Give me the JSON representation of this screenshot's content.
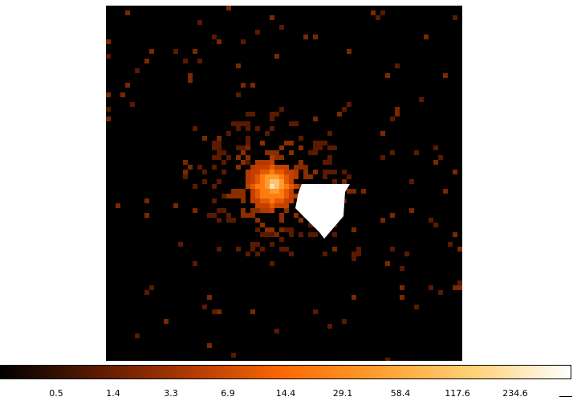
{
  "viewer": {
    "colormap": [
      "#000000",
      "#5a1a00",
      "#b23a00",
      "#ff6a00",
      "#ffa030",
      "#ffd27a",
      "#ffffff"
    ],
    "background": "#000000"
  },
  "colorbar": {
    "tick_labels": [
      "0.5",
      "1.4",
      "3.3",
      "6.9",
      "14.4",
      "29.1",
      "58.4",
      "117.6",
      "234.6"
    ]
  }
}
